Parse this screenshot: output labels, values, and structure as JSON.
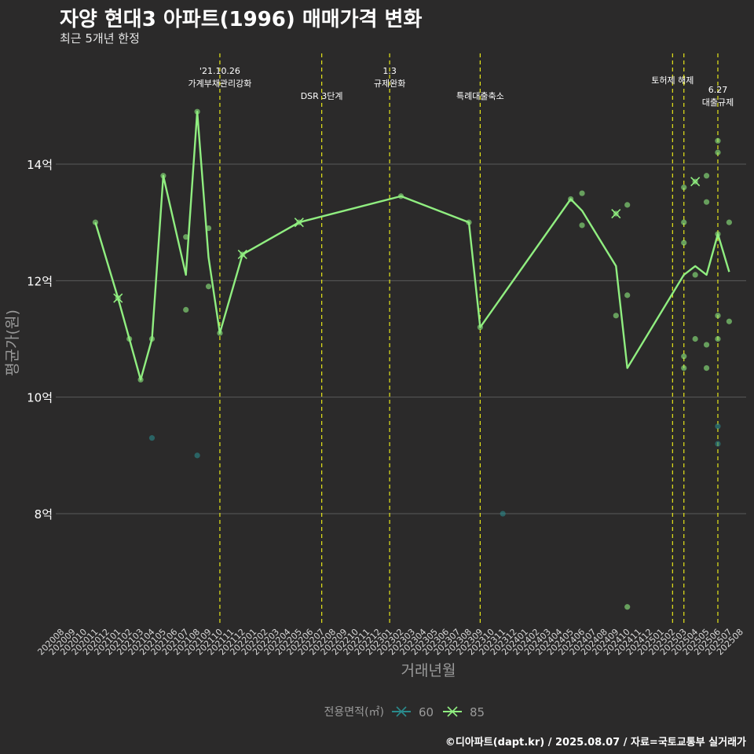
{
  "title": "자양 현대3 아파트(1996) 매매가격 변화",
  "subtitle": "최근 5개년 한정",
  "caption": "©디아파트(dapt.kr) / 2025.08.07 / 자료=국토교통부 실거래가",
  "colors": {
    "background": "#2b2a2a",
    "grid": "#5a5a5a",
    "series_60": "#2a8a8c",
    "series_85": "#90ee80",
    "event_line": "#e6e619",
    "axis_text": "#ffffff",
    "axis_title": "#9a9a9a"
  },
  "chart_data": {
    "type": "line",
    "xlabel": "거래년월",
    "ylabel": "평균가(원)",
    "ylim": [
      6.1,
      15.9
    ],
    "yticks": [
      8,
      10,
      12,
      14
    ],
    "ytick_labels": [
      "8억",
      "10억",
      "12억",
      "14억"
    ],
    "categories": [
      "202008",
      "202009",
      "202010",
      "202011",
      "202012",
      "202101",
      "202102",
      "202103",
      "202104",
      "202105",
      "202106",
      "202107",
      "202108",
      "202109",
      "202110",
      "202111",
      "202112",
      "202201",
      "202202",
      "202203",
      "202204",
      "202205",
      "202206",
      "202207",
      "202208",
      "202209",
      "202210",
      "202211",
      "202212",
      "202301",
      "202302",
      "202303",
      "202304",
      "202305",
      "202306",
      "202307",
      "202308",
      "202309",
      "202310",
      "202311",
      "202312",
      "202401",
      "202402",
      "202403",
      "202404",
      "202405",
      "202406",
      "202407",
      "202408",
      "202409",
      "202410",
      "202411",
      "202412",
      "202501",
      "202502",
      "202503",
      "202504",
      "202505",
      "202506",
      "202507",
      "202508"
    ],
    "legend_title": "전용면적(㎡)",
    "legend": [
      "60",
      "85"
    ],
    "series": [
      {
        "name": "85",
        "line": [
          [
            "202011",
            13.0
          ],
          [
            "202101",
            11.7
          ],
          [
            "202102",
            11.0
          ],
          [
            "202103",
            10.3
          ],
          [
            "202104",
            11.0
          ],
          [
            "202105",
            13.8
          ],
          [
            "202107",
            12.1
          ],
          [
            "202108",
            14.9
          ],
          [
            "202109",
            12.4
          ],
          [
            "202110",
            11.1
          ],
          [
            "202112",
            12.45
          ],
          [
            "202205",
            13.0
          ],
          [
            "202302",
            13.45
          ],
          [
            "202308",
            13.0
          ],
          [
            "202309",
            11.2
          ],
          [
            "202405",
            13.4
          ],
          [
            "202406",
            13.2
          ],
          [
            "202409",
            12.25
          ],
          [
            "202410",
            10.5
          ],
          [
            "202503",
            12.1
          ],
          [
            "202504",
            12.25
          ],
          [
            "202505",
            12.1
          ],
          [
            "202506",
            12.8
          ],
          [
            "202507",
            12.15
          ]
        ],
        "points": [
          [
            "202011",
            13.0
          ],
          [
            "202101",
            11.7
          ],
          [
            "202102",
            11.0
          ],
          [
            "202103",
            10.3
          ],
          [
            "202104",
            11.0
          ],
          [
            "202105",
            13.8
          ],
          [
            "202107",
            11.5
          ],
          [
            "202107",
            12.75
          ],
          [
            "202108",
            14.9
          ],
          [
            "202109",
            12.9
          ],
          [
            "202109",
            11.9
          ],
          [
            "202110",
            11.1
          ],
          [
            "202112",
            12.45
          ],
          [
            "202205",
            13.0
          ],
          [
            "202302",
            13.45
          ],
          [
            "202308",
            13.0
          ],
          [
            "202309",
            11.2
          ],
          [
            "202405",
            13.4
          ],
          [
            "202406",
            13.5
          ],
          [
            "202406",
            12.95
          ],
          [
            "202409",
            11.4
          ],
          [
            "202409",
            13.15
          ],
          [
            "202410",
            13.3
          ],
          [
            "202410",
            11.75
          ],
          [
            "202410",
            6.4
          ],
          [
            "202503",
            13.6
          ],
          [
            "202503",
            13.0
          ],
          [
            "202503",
            12.65
          ],
          [
            "202503",
            10.7
          ],
          [
            "202503",
            10.5
          ],
          [
            "202504",
            13.7
          ],
          [
            "202504",
            12.1
          ],
          [
            "202504",
            11.0
          ],
          [
            "202505",
            13.8
          ],
          [
            "202505",
            13.35
          ],
          [
            "202505",
            10.9
          ],
          [
            "202505",
            10.5
          ],
          [
            "202506",
            14.4
          ],
          [
            "202506",
            14.2
          ],
          [
            "202506",
            12.8
          ],
          [
            "202506",
            11.4
          ],
          [
            "202506",
            11.0
          ],
          [
            "202507",
            13.0
          ],
          [
            "202507",
            11.3
          ]
        ],
        "markers": [
          [
            "202101",
            11.7
          ],
          [
            "202112",
            12.45
          ],
          [
            "202205",
            13.0
          ],
          [
            "202409",
            13.15
          ],
          [
            "202504",
            13.7
          ]
        ]
      },
      {
        "name": "60",
        "line": [],
        "points": [
          [
            "202104",
            9.3
          ],
          [
            "202108",
            9.0
          ],
          [
            "202311",
            8.0
          ],
          [
            "202506",
            9.5
          ],
          [
            "202506",
            9.2
          ]
        ],
        "markers": []
      }
    ],
    "events": [
      {
        "month": "202110",
        "label": [
          "'21.10.26",
          "가계부채관리강화"
        ],
        "level": 0
      },
      {
        "month": "202207",
        "label": [
          "DSR 3단계"
        ],
        "level": 1
      },
      {
        "month": "202301",
        "label": [
          "1.3",
          "규제완화"
        ],
        "level": 0
      },
      {
        "month": "202309",
        "label": [
          "특례대출축소"
        ],
        "level": 1
      },
      {
        "month": "202502",
        "label": [
          "토허제 해제"
        ],
        "level": 2
      },
      {
        "month": "202503",
        "label": [],
        "level": 2
      },
      {
        "month": "202506",
        "label": [
          "6.27",
          "대출규제"
        ],
        "level": 3
      }
    ]
  }
}
